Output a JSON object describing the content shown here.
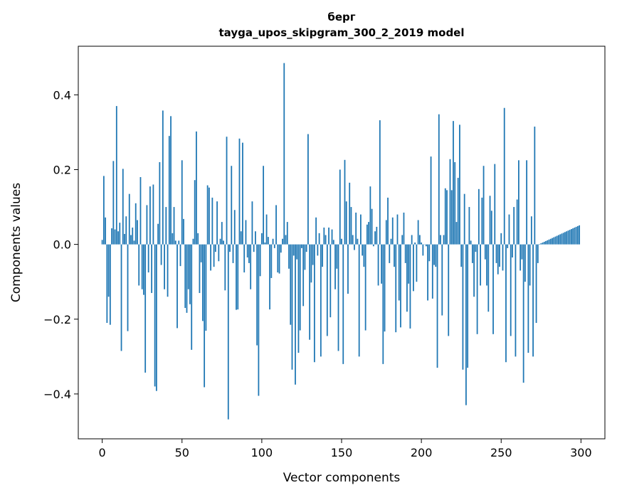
{
  "chart_data": {
    "type": "bar",
    "title": "берг",
    "subtitle": "tayga_upos_skipgram_300_2_2019 model",
    "xlabel": "Vector components",
    "ylabel": "Components values",
    "xlim": [
      -15,
      315
    ],
    "ylim": [
      -0.52,
      0.53
    ],
    "xticks": [
      0,
      50,
      100,
      150,
      200,
      250,
      300
    ],
    "yticks": [
      -0.4,
      -0.2,
      0.0,
      0.2,
      0.4
    ],
    "xtick_labels": [
      "0",
      "50",
      "100",
      "150",
      "200",
      "250",
      "300"
    ],
    "ytick_labels": [
      "−0.4",
      "−0.2",
      "0.0",
      "0.2",
      "0.4"
    ],
    "grid": false,
    "bar_color": "#1f77b4",
    "x": [
      0,
      1,
      2,
      3,
      4,
      5,
      6,
      7,
      8,
      9,
      10,
      11,
      12,
      13,
      14,
      15,
      16,
      17,
      18,
      19,
      20,
      21,
      22,
      23,
      24,
      25,
      26,
      27,
      28,
      29,
      30,
      31,
      32,
      33,
      34,
      35,
      36,
      37,
      38,
      39,
      40,
      41,
      42,
      43,
      44,
      45,
      46,
      47,
      48,
      49,
      50,
      51,
      52,
      53,
      54,
      55,
      56,
      57,
      58,
      59,
      60,
      61,
      62,
      63,
      64,
      65,
      66,
      67,
      68,
      69,
      70,
      71,
      72,
      73,
      74,
      75,
      76,
      77,
      78,
      79,
      80,
      81,
      82,
      83,
      84,
      85,
      86,
      87,
      88,
      89,
      90,
      91,
      92,
      93,
      94,
      95,
      96,
      97,
      98,
      99,
      100,
      101,
      102,
      103,
      104,
      105,
      106,
      107,
      108,
      109,
      110,
      111,
      112,
      113,
      114,
      115,
      116,
      117,
      118,
      119,
      120,
      121,
      122,
      123,
      124,
      125,
      126,
      127,
      128,
      129,
      130,
      131,
      132,
      133,
      134,
      135,
      136,
      137,
      138,
      139,
      140,
      141,
      142,
      143,
      144,
      145,
      146,
      147,
      148,
      149,
      150,
      151,
      152,
      153,
      154,
      155,
      156,
      157,
      158,
      159,
      160,
      161,
      162,
      163,
      164,
      165,
      166,
      167,
      168,
      169,
      170,
      171,
      172,
      173,
      174,
      175,
      176,
      177,
      178,
      179,
      180,
      181,
      182,
      183,
      184,
      185,
      186,
      187,
      188,
      189,
      190,
      191,
      192,
      193,
      194,
      195,
      196,
      197,
      198,
      199,
      200,
      201,
      202,
      203,
      204,
      205,
      206,
      207,
      208,
      209,
      210,
      211,
      212,
      213,
      214,
      215,
      216,
      217,
      218,
      219,
      220,
      221,
      222,
      223,
      224,
      225,
      226,
      227,
      228,
      229,
      230,
      231,
      232,
      233,
      234,
      235,
      236,
      237,
      238,
      239,
      240,
      241,
      242,
      243,
      244,
      245,
      246,
      247,
      248,
      249,
      250,
      251,
      252,
      253,
      254,
      255,
      256,
      257,
      258,
      259,
      260,
      261,
      262,
      263,
      264,
      265,
      266,
      267,
      268,
      269,
      270,
      271,
      272,
      273,
      274,
      275,
      276,
      277,
      278,
      279,
      280,
      281,
      282,
      283,
      284,
      285,
      286,
      287,
      288,
      289,
      290,
      291,
      292,
      293,
      294,
      295,
      296,
      297,
      298,
      299
    ],
    "values": [
      0.012,
      0.183,
      0.072,
      -0.21,
      -0.14,
      -0.215,
      0.043,
      0.223,
      0.04,
      0.37,
      0.035,
      0.058,
      -0.285,
      0.202,
      0.028,
      0.075,
      -0.232,
      0.135,
      0.025,
      0.045,
      0.01,
      0.11,
      0.065,
      -0.11,
      0.18,
      -0.12,
      -0.135,
      -0.343,
      0.105,
      -0.075,
      0.155,
      -0.13,
      0.16,
      -0.38,
      -0.392,
      0.055,
      0.22,
      -0.055,
      0.358,
      -0.12,
      0.1,
      -0.14,
      0.29,
      0.343,
      0.03,
      0.1,
      0.01,
      -0.224,
      0.01,
      -0.058,
      0.225,
      0.068,
      -0.17,
      -0.183,
      -0.12,
      -0.16,
      -0.282,
      0.015,
      0.172,
      0.302,
      0.03,
      -0.13,
      -0.048,
      -0.205,
      -0.382,
      -0.231,
      0.158,
      0.152,
      -0.07,
      0.125,
      -0.06,
      -0.02,
      0.115,
      -0.045,
      0.015,
      0.06,
      0.01,
      -0.123,
      0.288,
      -0.468,
      -0.02,
      0.21,
      -0.05,
      0.092,
      -0.175,
      -0.174,
      0.283,
      0.035,
      0.272,
      -0.075,
      0.065,
      -0.035,
      -0.05,
      -0.12,
      0.115,
      -0.02,
      0.035,
      -0.27,
      -0.405,
      -0.085,
      0.03,
      0.21,
      0.005,
      0.08,
      0.02,
      -0.174,
      -0.09,
      0.015,
      -0.01,
      0.105,
      -0.075,
      -0.078,
      -0.022,
      0.015,
      0.485,
      0.025,
      0.06,
      -0.065,
      -0.215,
      -0.335,
      -0.03,
      -0.375,
      -0.04,
      -0.29,
      -0.23,
      -0.01,
      -0.165,
      -0.068,
      -0.02,
      0.295,
      -0.255,
      -0.102,
      -0.055,
      -0.315,
      0.072,
      -0.03,
      0.03,
      -0.3,
      -0.06,
      0.045,
      0.025,
      -0.245,
      0.045,
      -0.195,
      0.04,
      0.012,
      -0.12,
      -0.065,
      -0.285,
      0.2,
      0.015,
      -0.32,
      0.226,
      0.115,
      -0.132,
      0.165,
      0.1,
      0.025,
      -0.015,
      0.085,
      0.015,
      -0.3,
      0.08,
      -0.03,
      -0.06,
      -0.23,
      0.053,
      0.06,
      0.155,
      0.095,
      -0.005,
      0.035,
      0.047,
      -0.11,
      0.332,
      -0.105,
      -0.32,
      -0.233,
      0.065,
      0.125,
      -0.05,
      0.015,
      0.072,
      -0.06,
      -0.235,
      0.08,
      -0.15,
      -0.222,
      0.025,
      0.085,
      -0.05,
      -0.18,
      -0.105,
      -0.225,
      0.025,
      -0.125,
      0.005,
      -0.1,
      0.065,
      0.025,
      0.005,
      -0.03,
      -0.0,
      -0.005,
      -0.15,
      -0.045,
      0.235,
      -0.145,
      -0.055,
      -0.06,
      -0.33,
      0.348,
      0.025,
      -0.19,
      0.025,
      0.15,
      0.145,
      -0.245,
      0.228,
      0.145,
      0.33,
      0.22,
      0.06,
      0.178,
      0.32,
      -0.06,
      -0.335,
      0.135,
      -0.43,
      -0.33,
      0.1,
      0.01,
      -0.05,
      -0.14,
      -0.02,
      -0.24,
      0.148,
      -0.11,
      0.125,
      0.21,
      -0.04,
      -0.11,
      -0.18,
      0.13,
      0.09,
      -0.24,
      0.215,
      -0.05,
      -0.08,
      -0.06,
      0.03,
      -0.07,
      0.365,
      -0.315,
      -0.01,
      0.08,
      -0.245,
      -0.035,
      0.1,
      -0.3,
      0.12,
      0.225,
      -0.07,
      -0.04,
      -0.37,
      -0.1,
      0.225,
      -0.29,
      -0.11,
      0.075,
      -0.3,
      0.315,
      -0.21,
      -0.05,
      0.001,
      0.003,
      0.005,
      0.007,
      0.009,
      0.011,
      0.013,
      0.015,
      0.017,
      0.019,
      0.021,
      0.023,
      0.025,
      0.027,
      0.029,
      0.031,
      0.033,
      0.035,
      0.037,
      0.039,
      0.041,
      0.043,
      0.045,
      0.047,
      0.049,
      0.051
    ]
  }
}
